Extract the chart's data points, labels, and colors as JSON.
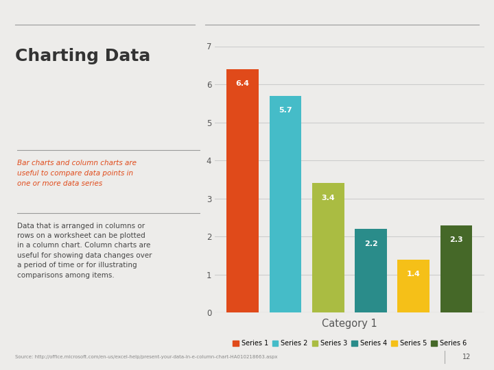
{
  "title": "Charting Data",
  "subtitle_italic": "Bar charts and column charts are\nuseful to compare data points in\none or more data series",
  "body_text": "Data that is arranged in columns or\nrows on a worksheet can be plotted\nin a column chart. Column charts are\nuseful for showing data changes over\na period of time or for illustrating\ncomparisons among items.",
  "source_text": "Source: http://office.microsoft.com/en-us/excel-help/present-your-data-in-e-column-chart-HA010218663.aspx",
  "series": [
    "Series 1",
    "Series 2",
    "Series 3",
    "Series 4",
    "Series 5",
    "Series 6"
  ],
  "values": [
    6.4,
    5.7,
    3.4,
    2.2,
    1.4,
    2.3
  ],
  "colors": [
    "#E04A1A",
    "#45BCC8",
    "#AABC42",
    "#2A8C8A",
    "#F5C018",
    "#456828"
  ],
  "ylim": [
    0,
    7
  ],
  "yticks": [
    0,
    1,
    2,
    3,
    4,
    5,
    6,
    7
  ],
  "xlabel": "Category 1",
  "bg_color": "#EDECEA",
  "bar_label_color": "white",
  "title_color": "#333333",
  "subtitle_color": "#E04A1A",
  "body_color": "#444444",
  "grid_color": "#CCCCCC",
  "page_number": "12"
}
